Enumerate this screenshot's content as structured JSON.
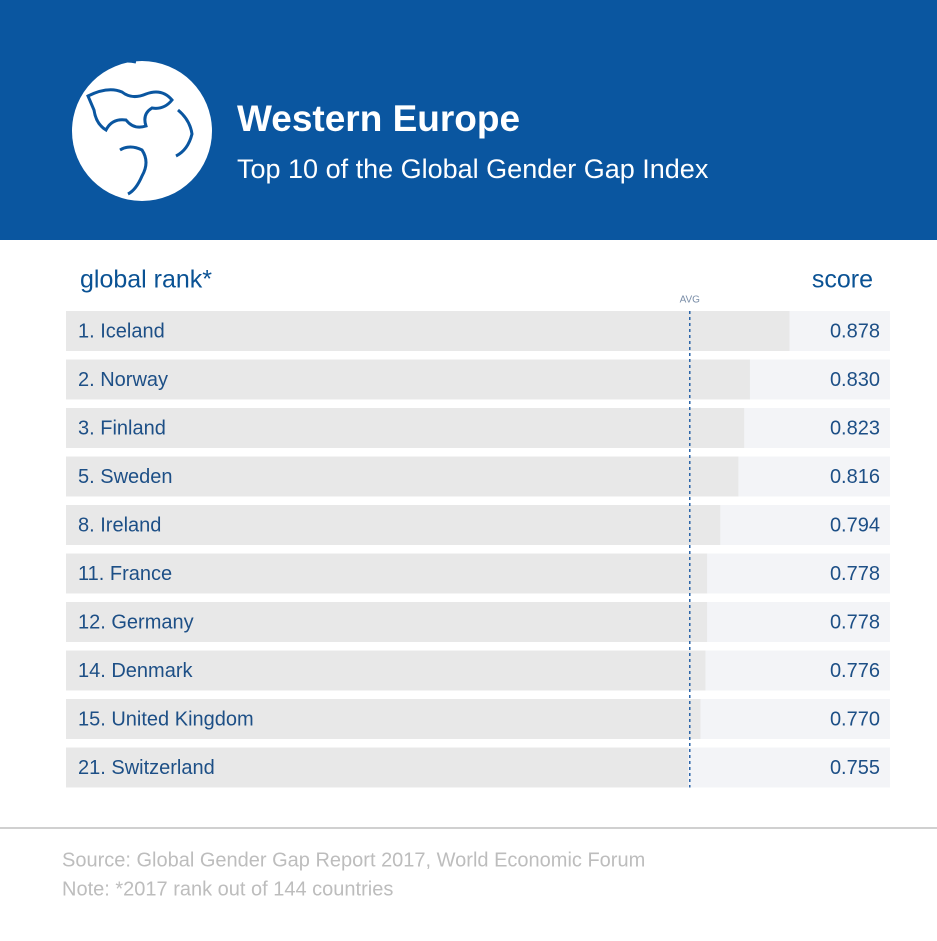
{
  "chart_data": {
    "type": "bar",
    "orientation": "horizontal",
    "title": "Western Europe",
    "subtitle": "Top 10 of the Global Gender Gap Index",
    "category_header": "global rank*",
    "value_header": "score",
    "categories": [
      "1. Iceland",
      "2. Norway",
      "3. Finland",
      "5. Sweden",
      "8. Ireland",
      "11. France",
      "12. Germany",
      "14. Denmark",
      "15. United Kingdom",
      "21. Switzerland"
    ],
    "values": [
      0.878,
      0.83,
      0.823,
      0.816,
      0.794,
      0.778,
      0.778,
      0.776,
      0.77,
      0.755
    ],
    "value_labels": [
      "0.878",
      "0.830",
      "0.823",
      "0.816",
      "0.794",
      "0.778",
      "0.778",
      "0.776",
      "0.770",
      "0.755"
    ],
    "xlim": [
      0,
      1
    ],
    "avg": {
      "label": "AVG",
      "value": 0.757
    },
    "color": "#e8e8e8",
    "source": "Source: Global Gender Gap Report 2017,  World Economic Forum",
    "note": "Note: *2017 rank out of 144 countries"
  }
}
